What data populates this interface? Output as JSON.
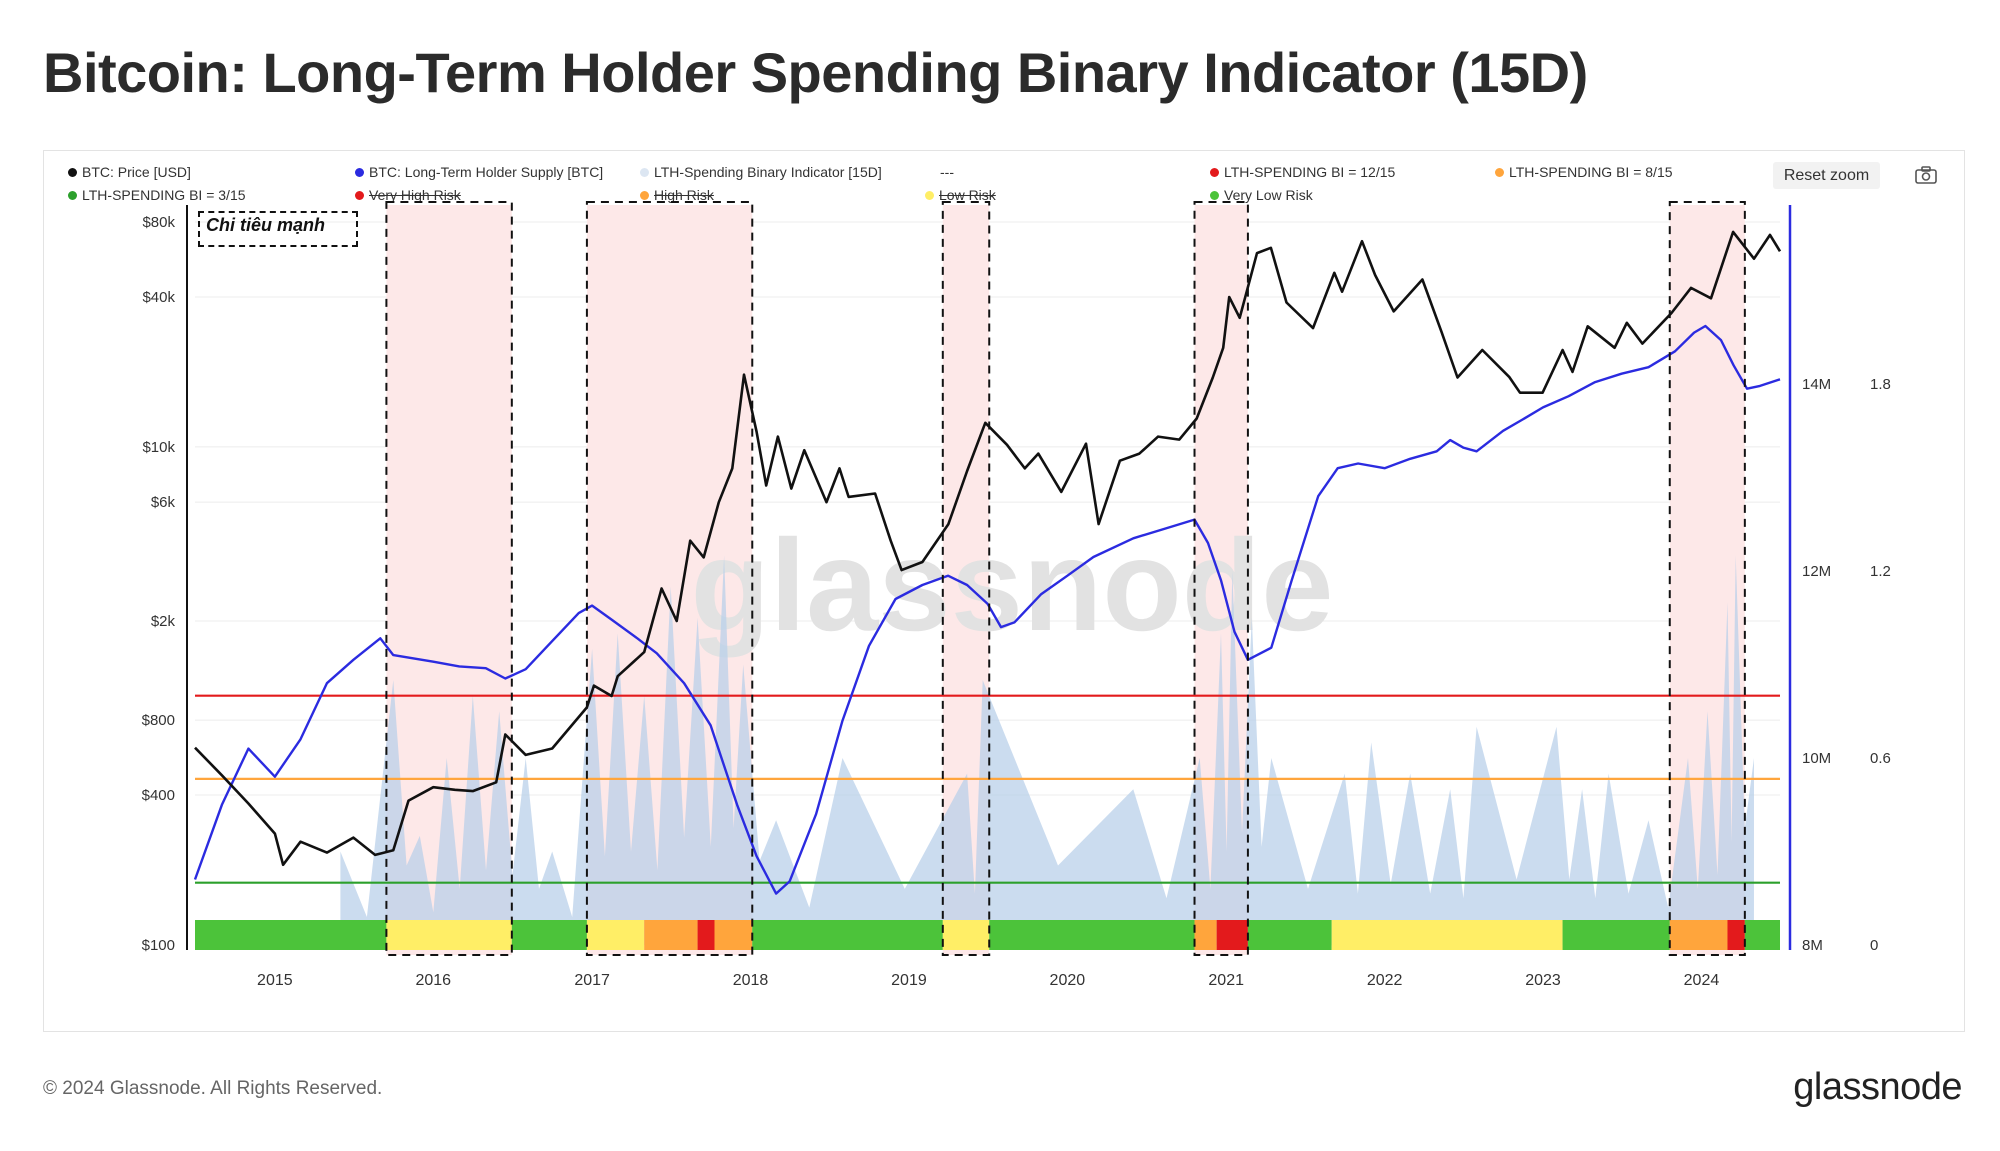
{
  "title": "Bitcoin: Long-Term Holder Spending Binary Indicator (15D)",
  "legend": [
    {
      "label": "BTC: Price [USD]",
      "color": "#111111"
    },
    {
      "label": "BTC: Long-Term Holder Supply [BTC]",
      "color": "#2b2be0"
    },
    {
      "label": "LTH-Spending Binary Indicator [15D]",
      "color": "#dce6f2"
    },
    {
      "label": "---",
      "color": ""
    },
    {
      "label": "LTH-SPENDING BI = 12/15",
      "color": "#e31a1c"
    },
    {
      "label": "LTH-SPENDING BI = 8/15",
      "color": "#ffa53c"
    },
    {
      "label": "LTH-SPENDING BI = 3/15",
      "color": "#2ca02c"
    },
    {
      "label": "Very High Risk",
      "color": "#e31a1c"
    },
    {
      "label": "High Risk",
      "color": "#ffa53c"
    },
    {
      "label": "Low Risk",
      "color": "#ffee66"
    },
    {
      "label": "Very Low Risk",
      "color": "#4cc33a"
    }
  ],
  "reset_zoom": "Reset zoom",
  "annotation": "Chi tiêu mạnh",
  "footer": "© 2024 Glassnode. All Rights Reserved.",
  "brand": "glassnode",
  "watermark": "glassnode",
  "colors": {
    "price": "#111111",
    "supply": "#2b2be0",
    "indicator": "#b9d0ea",
    "red": "#e31a1c",
    "orange": "#ffa53c",
    "yellow": "#ffee66",
    "green": "#4cc33a",
    "shade": "#fde8e8"
  },
  "chart_data": {
    "type": "line",
    "title": "Bitcoin: Long-Term Holder Spending Binary Indicator (15D)",
    "x_ticks": [
      "2015",
      "2016",
      "2017",
      "2018",
      "2019",
      "2020",
      "2021",
      "2022",
      "2023",
      "2024"
    ],
    "xlim": [
      "2014-07-01",
      "2024-06-30"
    ],
    "y_price_ticks": [
      "$80k",
      "$40k",
      "$10k",
      "$6k",
      "$2k",
      "$800",
      "$400",
      "$100"
    ],
    "y_price_scale": "log",
    "ylim_price": [
      100,
      80000
    ],
    "y_supply_ticks": [
      "14M",
      "12M",
      "10M",
      "8M"
    ],
    "ylim_supply": [
      8000000,
      14000000
    ],
    "y_indicator_ticks": [
      "1.8",
      "1.2",
      "0.6",
      "0"
    ],
    "ylim_indicator": [
      0,
      1.8
    ],
    "thresholds": [
      {
        "label": "LTH-SPENDING BI = 12/15",
        "value": 0.8,
        "color": "#e31a1c"
      },
      {
        "label": "LTH-SPENDING BI = 8/15",
        "value": 0.533,
        "color": "#ffa53c"
      },
      {
        "label": "LTH-SPENDING BI = 3/15",
        "value": 0.2,
        "color": "#2ca02c"
      }
    ],
    "series": [
      {
        "name": "BTC: Price [USD]",
        "axis": "price",
        "points": [
          [
            "2014-07-01",
            620
          ],
          [
            "2014-09-01",
            480
          ],
          [
            "2014-11-01",
            370
          ],
          [
            "2015-01-01",
            280
          ],
          [
            "2015-01-20",
            210
          ],
          [
            "2015-03-01",
            260
          ],
          [
            "2015-05-01",
            235
          ],
          [
            "2015-07-01",
            270
          ],
          [
            "2015-08-20",
            230
          ],
          [
            "2015-10-01",
            240
          ],
          [
            "2015-11-05",
            380
          ],
          [
            "2016-01-01",
            430
          ],
          [
            "2016-02-20",
            420
          ],
          [
            "2016-04-01",
            415
          ],
          [
            "2016-05-25",
            450
          ],
          [
            "2016-06-15",
            700
          ],
          [
            "2016-08-01",
            580
          ],
          [
            "2016-10-01",
            615
          ],
          [
            "2016-12-20",
            900
          ],
          [
            "2017-01-05",
            1100
          ],
          [
            "2017-02-15",
            1000
          ],
          [
            "2017-03-01",
            1200
          ],
          [
            "2017-05-01",
            1500
          ],
          [
            "2017-06-10",
            2700
          ],
          [
            "2017-07-15",
            2000
          ],
          [
            "2017-08-15",
            4200
          ],
          [
            "2017-09-15",
            3600
          ],
          [
            "2017-10-20",
            6000
          ],
          [
            "2017-11-20",
            8200
          ],
          [
            "2017-12-17",
            19500
          ],
          [
            "2018-01-15",
            11500
          ],
          [
            "2018-02-06",
            7000
          ],
          [
            "2018-03-05",
            11000
          ],
          [
            "2018-04-05",
            6800
          ],
          [
            "2018-05-05",
            9700
          ],
          [
            "2018-06-25",
            6000
          ],
          [
            "2018-07-25",
            8200
          ],
          [
            "2018-08-15",
            6300
          ],
          [
            "2018-10-15",
            6500
          ],
          [
            "2018-11-20",
            4200
          ],
          [
            "2018-12-15",
            3200
          ],
          [
            "2019-02-01",
            3450
          ],
          [
            "2019-04-02",
            4900
          ],
          [
            "2019-05-15",
            8000
          ],
          [
            "2019-06-26",
            12500
          ],
          [
            "2019-08-15",
            10200
          ],
          [
            "2019-09-25",
            8200
          ],
          [
            "2019-10-26",
            9400
          ],
          [
            "2019-12-18",
            6600
          ],
          [
            "2020-02-13",
            10300
          ],
          [
            "2020-03-13",
            4900
          ],
          [
            "2020-05-01",
            8800
          ],
          [
            "2020-06-15",
            9400
          ],
          [
            "2020-07-28",
            11000
          ],
          [
            "2020-09-15",
            10700
          ],
          [
            "2020-10-25",
            13000
          ],
          [
            "2020-12-01",
            19000
          ],
          [
            "2020-12-25",
            25000
          ],
          [
            "2021-01-08",
            40000
          ],
          [
            "2021-02-01",
            33000
          ],
          [
            "2021-03-13",
            60000
          ],
          [
            "2021-04-14",
            63000
          ],
          [
            "2021-05-20",
            38000
          ],
          [
            "2021-07-20",
            30000
          ],
          [
            "2021-09-07",
            50000
          ],
          [
            "2021-09-25",
            42000
          ],
          [
            "2021-11-10",
            67000
          ],
          [
            "2021-12-10",
            49000
          ],
          [
            "2022-01-22",
            35000
          ],
          [
            "2022-03-29",
            47000
          ],
          [
            "2022-05-12",
            29000
          ],
          [
            "2022-06-18",
            19000
          ],
          [
            "2022-08-14",
            24500
          ],
          [
            "2022-10-15",
            19100
          ],
          [
            "2022-11-09",
            16500
          ],
          [
            "2022-12-31",
            16500
          ],
          [
            "2023-02-15",
            24500
          ],
          [
            "2023-03-10",
            20000
          ],
          [
            "2023-04-14",
            30500
          ],
          [
            "2023-06-15",
            25000
          ],
          [
            "2023-07-13",
            31500
          ],
          [
            "2023-08-18",
            26000
          ],
          [
            "2023-10-24",
            34500
          ],
          [
            "2023-12-08",
            43500
          ],
          [
            "2024-01-23",
            39500
          ],
          [
            "2024-03-14",
            73000
          ],
          [
            "2024-05-01",
            57000
          ],
          [
            "2024-06-07",
            71000
          ],
          [
            "2024-06-30",
            61000
          ]
        ]
      },
      {
        "name": "BTC: Long-Term Holder Supply [BTC]",
        "axis": "supply",
        "points": [
          [
            "2014-07-01",
            8700000
          ],
          [
            "2014-09-01",
            9500000
          ],
          [
            "2014-11-01",
            10100000
          ],
          [
            "2015-01-01",
            9800000
          ],
          [
            "2015-03-01",
            10200000
          ],
          [
            "2015-05-01",
            10800000
          ],
          [
            "2015-07-01",
            11050000
          ],
          [
            "2015-09-01",
            11280000
          ],
          [
            "2015-10-01",
            11100000
          ],
          [
            "2016-01-01",
            11030000
          ],
          [
            "2016-03-01",
            10980000
          ],
          [
            "2016-05-01",
            10960000
          ],
          [
            "2016-06-15",
            10850000
          ],
          [
            "2016-08-01",
            10950000
          ],
          [
            "2016-10-01",
            11250000
          ],
          [
            "2016-12-01",
            11550000
          ],
          [
            "2017-01-01",
            11630000
          ],
          [
            "2017-02-15",
            11480000
          ],
          [
            "2017-04-15",
            11280000
          ],
          [
            "2017-05-30",
            11120000
          ],
          [
            "2017-08-01",
            10800000
          ],
          [
            "2017-10-01",
            10350000
          ],
          [
            "2017-12-01",
            9500000
          ],
          [
            "2018-01-15",
            8950000
          ],
          [
            "2018-03-01",
            8550000
          ],
          [
            "2018-04-01",
            8680000
          ],
          [
            "2018-06-01",
            9400000
          ],
          [
            "2018-08-01",
            10400000
          ],
          [
            "2018-10-01",
            11200000
          ],
          [
            "2018-12-01",
            11700000
          ],
          [
            "2019-02-01",
            11850000
          ],
          [
            "2019-04-01",
            11950000
          ],
          [
            "2019-05-15",
            11850000
          ],
          [
            "2019-07-01",
            11650000
          ],
          [
            "2019-08-01",
            11400000
          ],
          [
            "2019-09-01",
            11450000
          ],
          [
            "2019-11-01",
            11750000
          ],
          [
            "2020-01-01",
            11950000
          ],
          [
            "2020-03-01",
            12150000
          ],
          [
            "2020-06-01",
            12350000
          ],
          [
            "2020-09-01",
            12480000
          ],
          [
            "2020-10-20",
            12550000
          ],
          [
            "2020-11-20",
            12300000
          ],
          [
            "2020-12-20",
            11900000
          ],
          [
            "2021-01-20",
            11350000
          ],
          [
            "2021-02-20",
            11050000
          ],
          [
            "2021-04-15",
            11180000
          ],
          [
            "2021-06-01",
            11900000
          ],
          [
            "2021-08-01",
            12800000
          ],
          [
            "2021-09-15",
            13100000
          ],
          [
            "2021-11-01",
            13150000
          ],
          [
            "2022-01-01",
            13100000
          ],
          [
            "2022-03-01",
            13200000
          ],
          [
            "2022-05-01",
            13280000
          ],
          [
            "2022-06-01",
            13400000
          ],
          [
            "2022-07-01",
            13320000
          ],
          [
            "2022-08-01",
            13280000
          ],
          [
            "2022-10-01",
            13500000
          ],
          [
            "2022-11-15",
            13620000
          ],
          [
            "2023-01-01",
            13750000
          ],
          [
            "2023-03-01",
            13870000
          ],
          [
            "2023-05-01",
            14020000
          ],
          [
            "2023-07-01",
            14110000
          ],
          [
            "2023-09-01",
            14180000
          ],
          [
            "2023-11-01",
            14350000
          ],
          [
            "2023-12-15",
            14550000
          ],
          [
            "2024-01-10",
            14620000
          ],
          [
            "2024-02-15",
            14470000
          ],
          [
            "2024-03-15",
            14200000
          ],
          [
            "2024-04-15",
            13950000
          ],
          [
            "2024-05-15",
            13980000
          ],
          [
            "2024-06-30",
            14050000
          ]
        ]
      },
      {
        "name": "LTH-Spending Binary Indicator [15D]",
        "axis": "indicator",
        "points": [
          [
            "2015-06-01",
            0.3
          ],
          [
            "2015-10-01",
            0.85
          ],
          [
            "2015-12-01",
            0.35
          ],
          [
            "2016-02-01",
            0.6
          ],
          [
            "2016-04-01",
            0.8
          ],
          [
            "2016-06-01",
            0.75
          ],
          [
            "2016-08-01",
            0.6
          ],
          [
            "2016-10-01",
            0.3
          ],
          [
            "2017-01-01",
            0.95
          ],
          [
            "2017-03-01",
            1.0
          ],
          [
            "2017-05-01",
            0.8
          ],
          [
            "2017-07-01",
            1.15
          ],
          [
            "2017-09-01",
            1.05
          ],
          [
            "2017-11-01",
            1.25
          ],
          [
            "2017-12-15",
            0.9
          ],
          [
            "2018-03-01",
            0.4
          ],
          [
            "2018-08-01",
            0.6
          ],
          [
            "2019-05-15",
            0.55
          ],
          [
            "2019-06-20",
            0.85
          ],
          [
            "2020-06-01",
            0.5
          ],
          [
            "2020-11-01",
            0.6
          ],
          [
            "2020-12-20",
            1.0
          ],
          [
            "2021-01-15",
            1.2
          ],
          [
            "2021-03-01",
            1.05
          ],
          [
            "2021-04-15",
            0.6
          ],
          [
            "2021-10-01",
            0.55
          ],
          [
            "2021-12-01",
            0.65
          ],
          [
            "2022-03-01",
            0.55
          ],
          [
            "2022-06-01",
            0.5
          ],
          [
            "2022-08-01",
            0.7
          ],
          [
            "2023-02-01",
            0.7
          ],
          [
            "2023-04-01",
            0.5
          ],
          [
            "2023-06-01",
            0.55
          ],
          [
            "2023-09-01",
            0.4
          ],
          [
            "2023-12-01",
            0.6
          ],
          [
            "2024-01-15",
            0.75
          ],
          [
            "2024-03-01",
            1.1
          ],
          [
            "2024-03-20",
            1.25
          ],
          [
            "2024-05-01",
            0.6
          ]
        ]
      }
    ],
    "shaded_periods": [
      [
        "2015-09-15",
        "2016-06-30"
      ],
      [
        "2016-12-20",
        "2018-01-05"
      ],
      [
        "2019-03-20",
        "2019-07-05"
      ],
      [
        "2020-10-20",
        "2021-02-20"
      ],
      [
        "2023-10-20",
        "2024-04-10"
      ]
    ],
    "risk_band": [
      {
        "from": "2014-07-01",
        "to": "2015-09-15",
        "level": "Very Low Risk"
      },
      {
        "from": "2015-09-15",
        "to": "2016-06-30",
        "level": "Low Risk"
      },
      {
        "from": "2016-06-30",
        "to": "2016-12-20",
        "level": "Very Low Risk"
      },
      {
        "from": "2016-12-20",
        "to": "2017-05-01",
        "level": "Low Risk"
      },
      {
        "from": "2017-05-01",
        "to": "2017-09-01",
        "level": "High Risk"
      },
      {
        "from": "2017-09-01",
        "to": "2017-10-10",
        "level": "Very High Risk"
      },
      {
        "from": "2017-10-10",
        "to": "2018-01-05",
        "level": "High Risk"
      },
      {
        "from": "2018-01-05",
        "to": "2019-03-20",
        "level": "Very Low Risk"
      },
      {
        "from": "2019-03-20",
        "to": "2019-07-05",
        "level": "Low Risk"
      },
      {
        "from": "2019-07-05",
        "to": "2020-10-20",
        "level": "Very Low Risk"
      },
      {
        "from": "2020-10-20",
        "to": "2020-12-10",
        "level": "High Risk"
      },
      {
        "from": "2020-12-10",
        "to": "2021-02-20",
        "level": "Very High Risk"
      },
      {
        "from": "2021-02-20",
        "to": "2021-09-01",
        "level": "Very Low Risk"
      },
      {
        "from": "2021-09-01",
        "to": "2023-02-15",
        "level": "Low Risk"
      },
      {
        "from": "2023-02-15",
        "to": "2023-10-20",
        "level": "Very Low Risk"
      },
      {
        "from": "2023-10-20",
        "to": "2024-03-01",
        "level": "High Risk"
      },
      {
        "from": "2024-03-01",
        "to": "2024-04-10",
        "level": "Very High Risk"
      },
      {
        "from": "2024-04-10",
        "to": "2024-06-30",
        "level": "Very Low Risk"
      }
    ]
  }
}
